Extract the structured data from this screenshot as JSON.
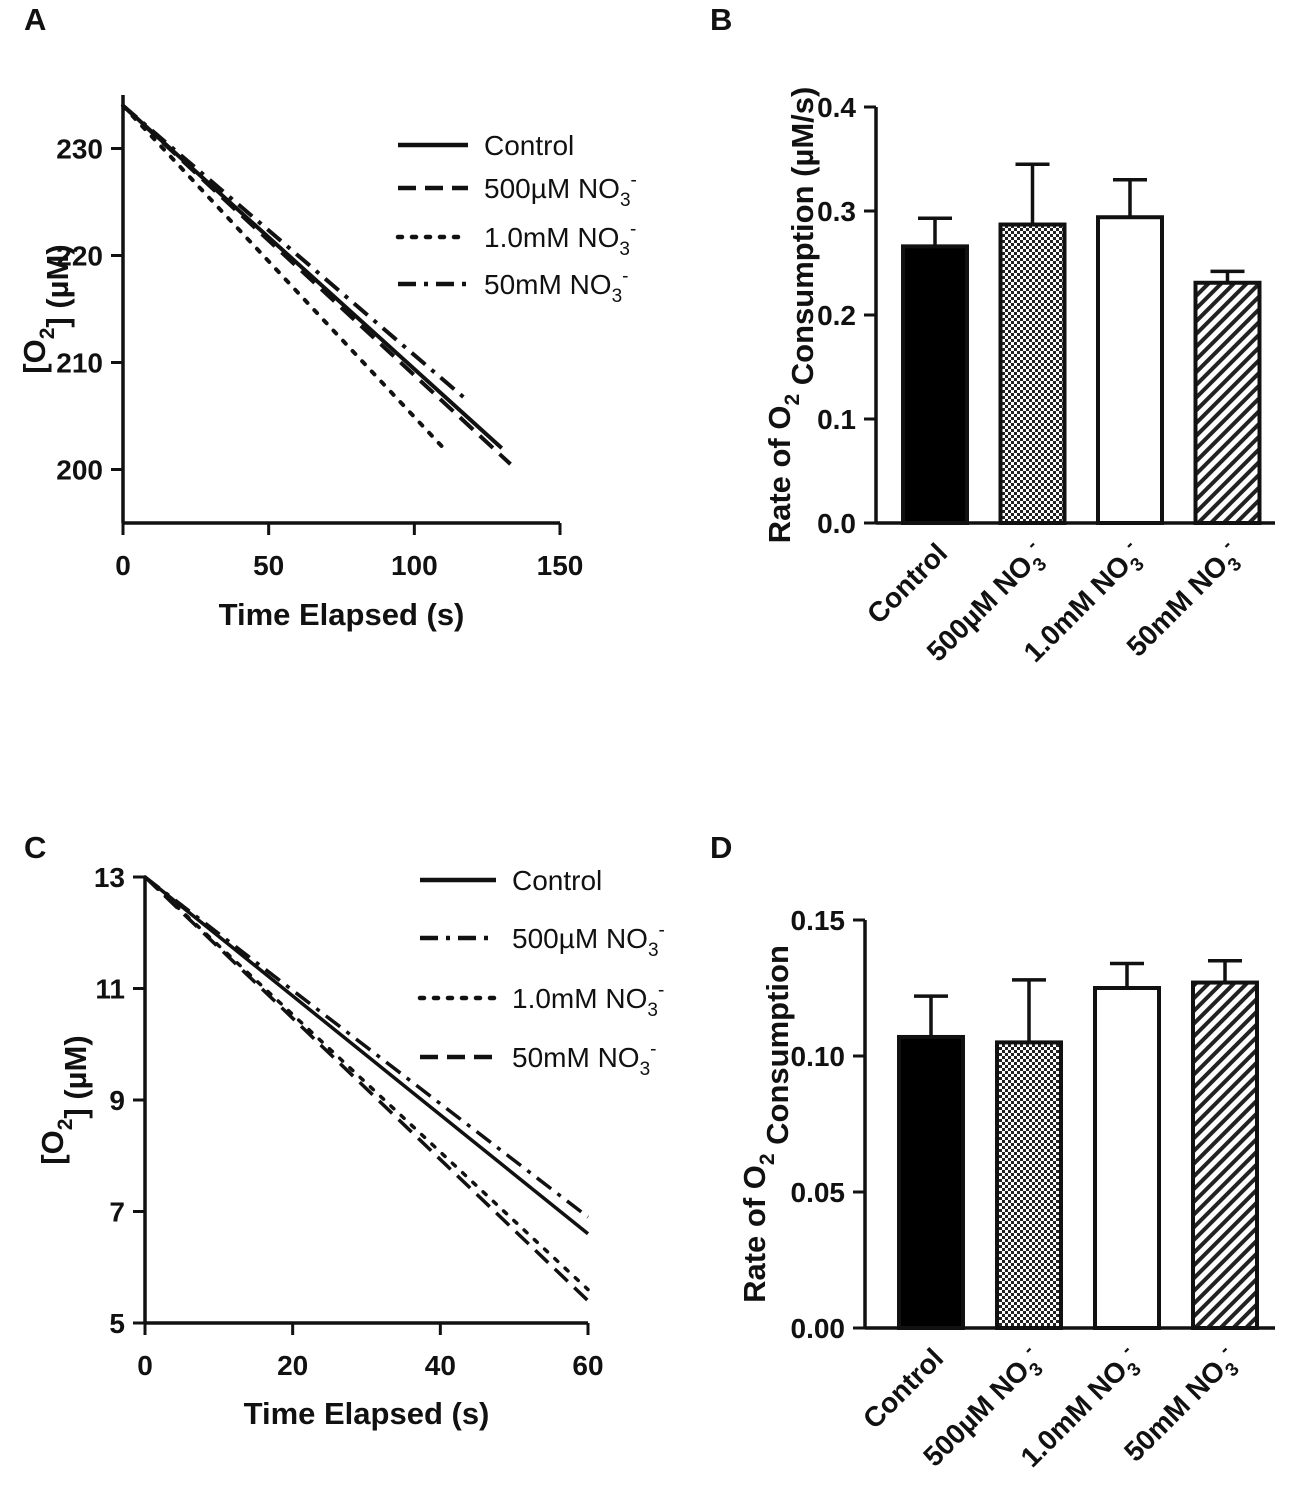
{
  "chart_data": [
    {
      "panel": "A",
      "type": "line",
      "xlabel": "Time Elapsed (s)",
      "ylabel": {
        "pre": "[O",
        "sub": "2",
        "post": "] (µM)"
      },
      "xlim": [
        0,
        150
      ],
      "ylim": [
        195,
        235
      ],
      "xticks": [
        "0",
        "50",
        "100",
        "150"
      ],
      "yticks": [
        "200",
        "210",
        "220",
        "230"
      ],
      "series": [
        {
          "name": "Control",
          "dash": "solid",
          "label": {
            "pre": "Control",
            "sub": "",
            "sup": ""
          },
          "x": [
            0,
            130
          ],
          "y": [
            234,
            202
          ]
        },
        {
          "name": "500µM NO3-",
          "dash": "dashed",
          "label": {
            "pre": "500µM NO",
            "sub": "3",
            "sup": "-"
          },
          "x": [
            0,
            133
          ],
          "y": [
            234,
            200.5
          ]
        },
        {
          "name": "1.0mM NO3-",
          "dash": "dotted",
          "label": {
            "pre": "1.0mM NO",
            "sub": "3",
            "sup": "-"
          },
          "x": [
            0,
            110
          ],
          "y": [
            234,
            202
          ]
        },
        {
          "name": "50mM NO3-",
          "dash": "dashdot",
          "label": {
            "pre": "50mM NO",
            "sub": "3",
            "sup": "-"
          },
          "x": [
            0,
            118
          ],
          "y": [
            234,
            206.5
          ]
        }
      ]
    },
    {
      "panel": "B",
      "type": "bar",
      "ylabel": {
        "pre": "Rate of O",
        "sub": "2",
        "post": " Consumption (µM/s)"
      },
      "ylim": [
        0,
        0.4
      ],
      "yticks": [
        "0.0",
        "0.1",
        "0.2",
        "0.3",
        "0.4"
      ],
      "categories": [
        {
          "pre": "Control",
          "sub": "",
          "sup": ""
        },
        {
          "pre": "500µM NO",
          "sub": "3",
          "sup": "-"
        },
        {
          "pre": "1.0mM NO",
          "sub": "3",
          "sup": "-"
        },
        {
          "pre": "50mM NO",
          "sub": "3",
          "sup": "-"
        }
      ],
      "values": [
        0.266,
        0.287,
        0.294,
        0.231
      ],
      "errors": [
        0.027,
        0.058,
        0.036,
        0.011
      ],
      "fills": [
        "solid",
        "checker",
        "white",
        "hatch"
      ]
    },
    {
      "panel": "C",
      "type": "line",
      "xlabel": "Time Elapsed (s)",
      "ylabel": {
        "pre": "[O",
        "sub": "2",
        "post": "] (µM)"
      },
      "xlim": [
        0,
        60
      ],
      "ylim": [
        5,
        13
      ],
      "xticks": [
        "0",
        "20",
        "40",
        "60"
      ],
      "yticks": [
        "5",
        "7",
        "9",
        "11",
        "13"
      ],
      "series": [
        {
          "name": "Control",
          "dash": "solid",
          "label": {
            "pre": "Control",
            "sub": "",
            "sup": ""
          },
          "x": [
            0,
            60
          ],
          "y": [
            13,
            6.6
          ]
        },
        {
          "name": "500µM NO3-",
          "dash": "dashdot",
          "label": {
            "pre": "500µM NO",
            "sub": "3",
            "sup": "-"
          },
          "x": [
            0,
            60
          ],
          "y": [
            13,
            6.9
          ]
        },
        {
          "name": "1.0mM NO3-",
          "dash": "dotted",
          "label": {
            "pre": "1.0mM NO",
            "sub": "3",
            "sup": "-"
          },
          "x": [
            0,
            60
          ],
          "y": [
            13,
            5.6
          ]
        },
        {
          "name": "50mM NO3-",
          "dash": "dashed",
          "label": {
            "pre": "50mM NO",
            "sub": "3",
            "sup": "-"
          },
          "x": [
            0,
            60
          ],
          "y": [
            13,
            5.4
          ]
        }
      ]
    },
    {
      "panel": "D",
      "type": "bar",
      "ylabel": {
        "pre": "Rate of O",
        "sub": "2",
        "post": " Consumption"
      },
      "ylim": [
        0,
        0.15
      ],
      "yticks": [
        "0.00",
        "0.05",
        "0.10",
        "0.15"
      ],
      "categories": [
        {
          "pre": "Control",
          "sub": "",
          "sup": ""
        },
        {
          "pre": "500µM NO",
          "sub": "3",
          "sup": "-"
        },
        {
          "pre": "1.0mM NO",
          "sub": "3",
          "sup": "-"
        },
        {
          "pre": "50mM NO",
          "sub": "3",
          "sup": "-"
        }
      ],
      "values": [
        0.107,
        0.105,
        0.125,
        0.127
      ],
      "errors": [
        0.015,
        0.023,
        0.009,
        0.008
      ],
      "fills": [
        "solid",
        "checker",
        "white",
        "hatch"
      ]
    }
  ]
}
